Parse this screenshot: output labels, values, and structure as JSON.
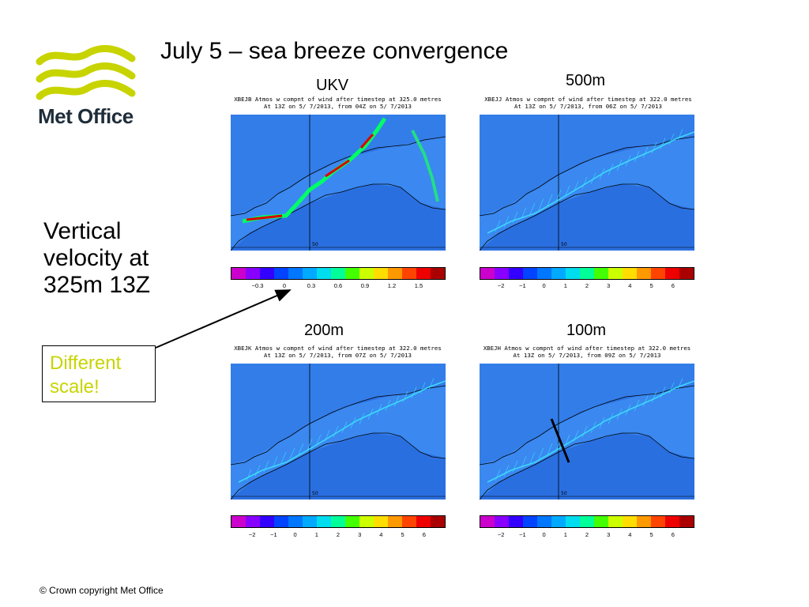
{
  "logo_text": "Met Office",
  "title": "July 5 – sea breeze convergence",
  "side_text": [
    "Vertical",
    "velocity at",
    "325m 13Z"
  ],
  "note": [
    "Different",
    "scale!"
  ],
  "footer": "© Crown copyright   Met Office",
  "panels": [
    {
      "label": "UKV",
      "header": [
        "XBEJB Atmos w compnt of wind after timestep at 325.0 metres",
        "At 13Z on 5/ 7/2013, from 04Z on 5/ 7/2013"
      ],
      "ticks": [
        "−0.3",
        "0",
        "0.3",
        "0.6",
        "0.9",
        "1.2",
        "1.5"
      ]
    },
    {
      "label": "500m",
      "header": [
        "XBEJJ Atmos w compnt of wind after timestep at 322.0 metres",
        "At 13Z on 5/ 7/2013, from 06Z on 5/ 7/2013"
      ],
      "ticks": [
        "−2",
        "−1",
        "0",
        "1",
        "2",
        "3",
        "4",
        "5",
        "6"
      ]
    },
    {
      "label": "200m",
      "header": [
        "XBEJK Atmos w compnt of wind after timestep at 322.0 metres",
        "At 13Z on 5/ 7/2013, from 07Z on 5/ 7/2013"
      ],
      "ticks": [
        "−2",
        "−1",
        "0",
        "1",
        "2",
        "3",
        "4",
        "5",
        "6"
      ]
    },
    {
      "label": "100m",
      "header": [
        "XBEJH Atmos w compnt of wind after timestep at 322.0 metres",
        "At 13Z on 5/ 7/2013, from 09Z on 5/ 7/2013"
      ],
      "ticks": [
        "−2",
        "−1",
        "0",
        "1",
        "2",
        "3",
        "4",
        "5",
        "6"
      ]
    }
  ],
  "map_label": "50",
  "colors": {
    "sea_blue": "#2a6fe0",
    "land_blue": "#3a88f0",
    "logo_green": "#c8d400",
    "colorbar": [
      "#cc00cc",
      "#8800ff",
      "#3300ff",
      "#0044ff",
      "#0077ff",
      "#00aaff",
      "#00ddee",
      "#00ff99",
      "#44ff00",
      "#ccff00",
      "#ffdd00",
      "#ff9900",
      "#ff4400",
      "#ee0000",
      "#aa0000"
    ]
  }
}
